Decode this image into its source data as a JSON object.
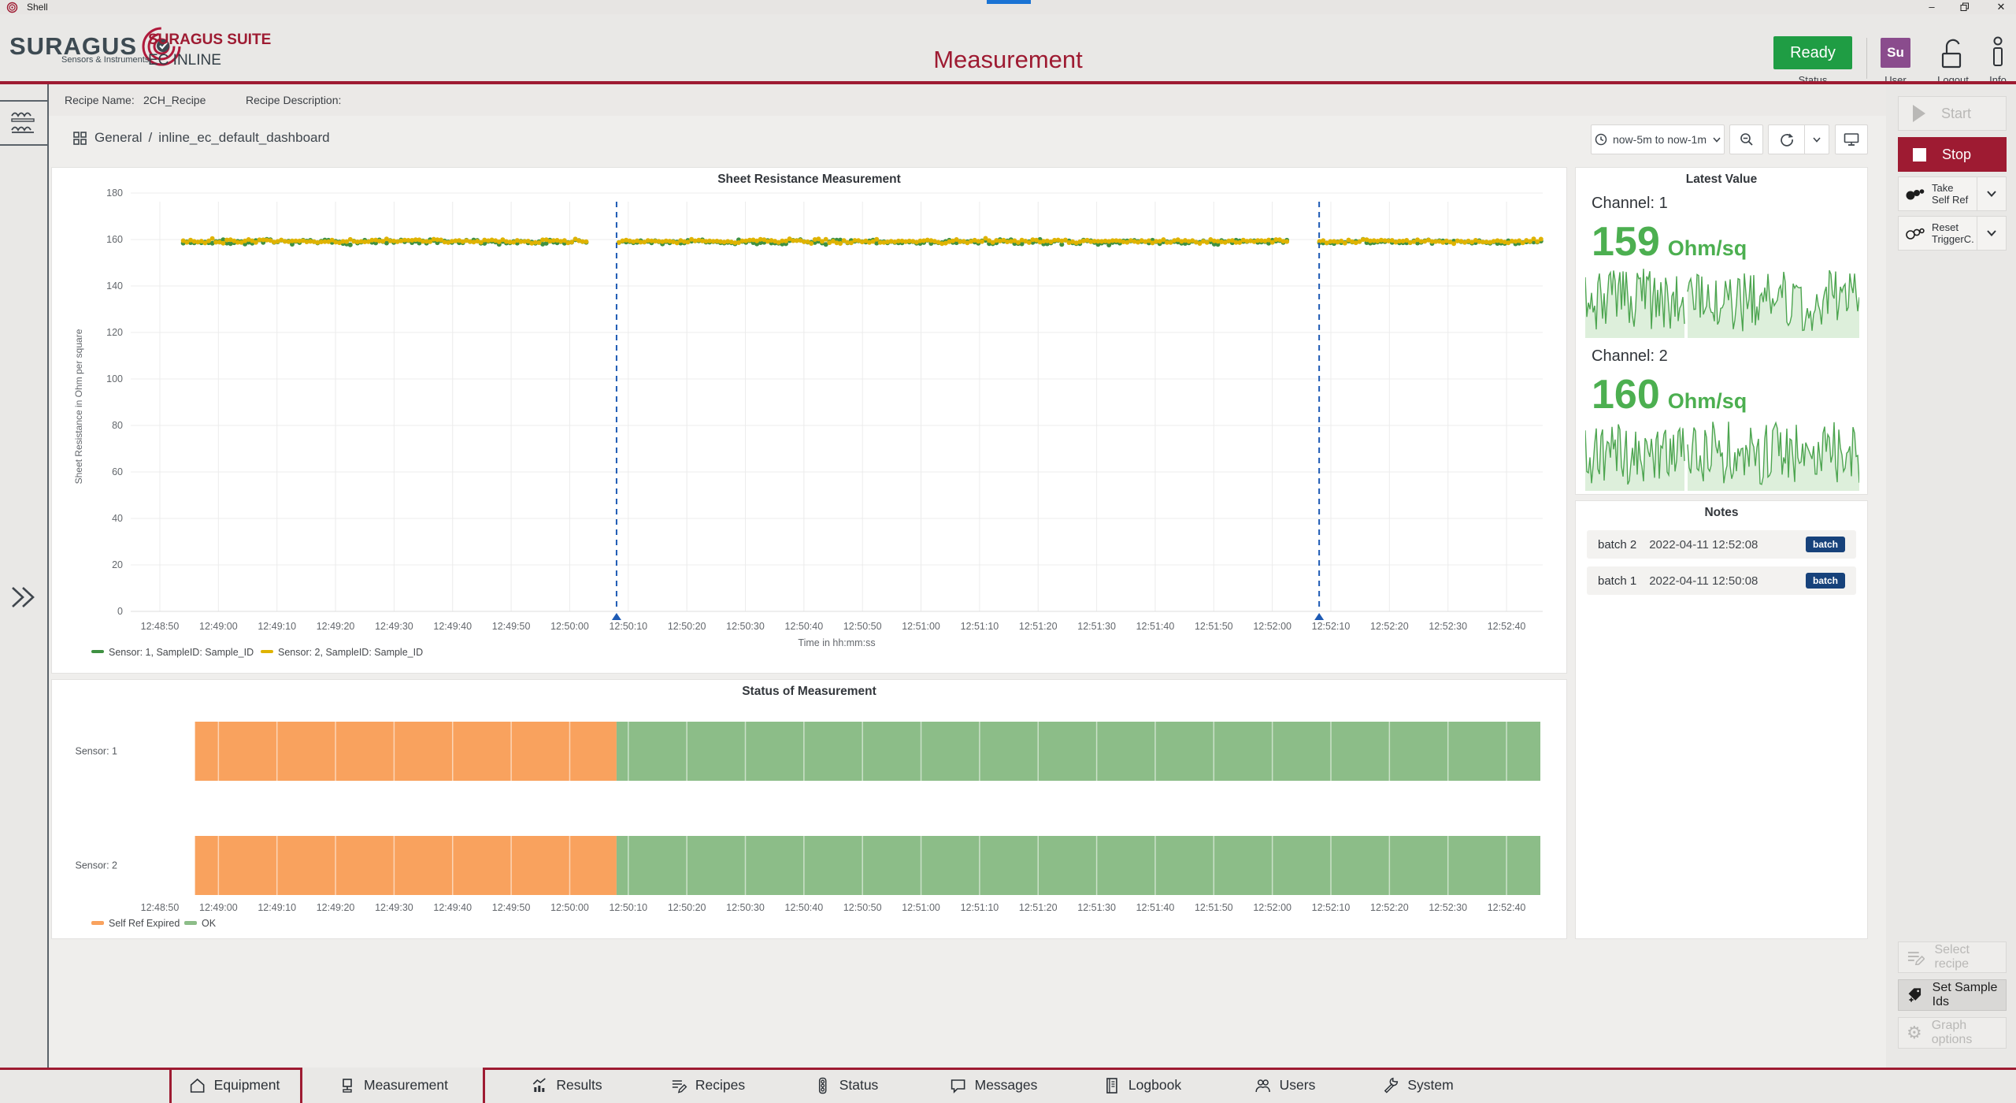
{
  "window": {
    "title": "Shell",
    "controls": {
      "minimize": "minimize",
      "restore": "restore",
      "close": "close"
    }
  },
  "header": {
    "logo_brand": "SURAGUS",
    "logo_tagline": "Sensors & Instruments",
    "suite": "SURAGUS SUITE",
    "product": "EC INLINE",
    "page_title": "Measurement",
    "status_value": "Ready",
    "status_label": "Status",
    "user_initials": "Su",
    "user_label": "User",
    "logout_label": "Logout",
    "info_label": "Info"
  },
  "recipe_bar": {
    "name_label": "Recipe Name:",
    "name_value": "2CH_Recipe",
    "desc_label": "Recipe Description:",
    "desc_value": ""
  },
  "dashboard": {
    "breadcrumb_folder": "General",
    "breadcrumb_separator": "/",
    "breadcrumb_name": "inline_ec_default_dashboard",
    "time_range": "now-5m to now-1m",
    "toolbar_icons": [
      "clock-icon",
      "chevron-down-icon",
      "zoom-out-icon",
      "refresh-icon",
      "chevron-down-icon",
      "tv-mode-icon"
    ]
  },
  "latest_value": {
    "title": "Latest Value",
    "channels": [
      {
        "label": "Channel: 1",
        "value": "159",
        "unit": "Ohm/sq"
      },
      {
        "label": "Channel: 2",
        "value": "160",
        "unit": "Ohm/sq"
      }
    ]
  },
  "notes": {
    "title": "Notes",
    "items": [
      {
        "name": "batch 2",
        "timestamp": "2022-04-11 12:52:08",
        "tag": "batch"
      },
      {
        "name": "batch 1",
        "timestamp": "2022-04-11 12:50:08",
        "tag": "batch"
      }
    ]
  },
  "actions": {
    "start": {
      "label": "Start",
      "enabled": false,
      "icon": "play-icon"
    },
    "stop": {
      "label": "Stop",
      "enabled": true,
      "icon": "stop-icon"
    },
    "take_self_ref": {
      "line1": "Take",
      "line2": "Self Ref",
      "icon": "sensor-icon"
    },
    "reset_trigger": {
      "line1": "Reset",
      "line2": "TriggerC.",
      "icon": "sensor-outline-icon"
    },
    "select_recipe": {
      "label": "Select recipe",
      "enabled": false,
      "icon": "recipe-icon"
    },
    "set_sample_ids": {
      "label": "Set Sample Ids",
      "enabled": true,
      "icon": "tag-plus-icon"
    },
    "graph_options": {
      "label": "Graph options",
      "enabled": false,
      "icon": "gear-icon"
    }
  },
  "tabs": [
    {
      "label": "Equipment",
      "icon": "house",
      "active": false
    },
    {
      "label": "Measurement",
      "icon": "monitor",
      "active": true
    },
    {
      "label": "Results",
      "icon": "results",
      "active": false
    },
    {
      "label": "Recipes",
      "icon": "recipes",
      "active": false
    },
    {
      "label": "Status",
      "icon": "trafficlight",
      "active": false
    },
    {
      "label": "Messages",
      "icon": "bubble",
      "active": false
    },
    {
      "label": "Logbook",
      "icon": "book",
      "active": false
    },
    {
      "label": "Users",
      "icon": "users",
      "active": false
    },
    {
      "label": "System",
      "icon": "wrench",
      "active": false
    }
  ],
  "chart_data": [
    {
      "id": "sheet_resistance",
      "type": "scatter",
      "title": "Sheet Resistance Measurement",
      "xlabel": "Time in hh:mm:ss",
      "ylabel": "Sheet Resistance in Ohm per square",
      "ylim": [
        0,
        180
      ],
      "yticks": [
        0,
        20,
        40,
        60,
        80,
        100,
        120,
        140,
        160,
        180
      ],
      "xticks": [
        "12:48:50",
        "12:49:00",
        "12:49:10",
        "12:49:20",
        "12:49:30",
        "12:49:40",
        "12:49:50",
        "12:50:00",
        "12:50:10",
        "12:50:20",
        "12:50:30",
        "12:50:40",
        "12:50:50",
        "12:51:00",
        "12:51:10",
        "12:51:20",
        "12:51:30",
        "12:51:40",
        "12:51:50",
        "12:52:00",
        "12:52:10",
        "12:52:20",
        "12:52:30",
        "12:52:40"
      ],
      "grid": true,
      "legend_position": "bottom-left",
      "data_start": "12:48:54",
      "data_end": "12:52:46",
      "series": [
        {
          "name": "Sensor: 1, SampleID: Sample_ID",
          "color": "#3f9142",
          "baseline": 158.9,
          "spread": 1.0,
          "description": "constant ~159 Ohm/sq with noise"
        },
        {
          "name": "Sensor: 2, SampleID: Sample_ID",
          "color": "#dfb301",
          "baseline": 159.3,
          "spread": 0.85,
          "description": "constant ~159 Ohm/sq with noise"
        }
      ],
      "annotations": [
        {
          "time": "12:50:08",
          "color": "#1d5ab4",
          "style": "dashed-vertical"
        },
        {
          "time": "12:52:08",
          "color": "#1d5ab4",
          "style": "dashed-vertical"
        }
      ],
      "gaps": [
        {
          "from": "12:50:03",
          "to": "12:50:08"
        },
        {
          "from": "12:52:03",
          "to": "12:52:08"
        }
      ]
    },
    {
      "id": "status_of_measurement",
      "type": "timeline",
      "title": "Status of Measurement",
      "xticks": [
        "12:48:50",
        "12:49:00",
        "12:49:10",
        "12:49:20",
        "12:49:30",
        "12:49:40",
        "12:49:50",
        "12:50:00",
        "12:50:10",
        "12:50:20",
        "12:50:30",
        "12:50:40",
        "12:50:50",
        "12:51:00",
        "12:51:10",
        "12:51:20",
        "12:51:30",
        "12:51:40",
        "12:51:50",
        "12:52:00",
        "12:52:10",
        "12:52:20",
        "12:52:30",
        "12:52:40"
      ],
      "rows": [
        {
          "label": "Sensor: 1",
          "segments": [
            {
              "state": "Self Ref Expired",
              "from": "12:48:56",
              "to": "12:50:08"
            },
            {
              "state": "OK",
              "from": "12:50:08",
              "to": "12:52:46"
            }
          ]
        },
        {
          "label": "Sensor: 2",
          "segments": [
            {
              "state": "Self Ref Expired",
              "from": "12:48:56",
              "to": "12:50:08"
            },
            {
              "state": "OK",
              "from": "12:50:08",
              "to": "12:52:46"
            }
          ]
        }
      ],
      "states": {
        "Self Ref Expired": "#f9a25e",
        "OK": "#8cbd88"
      },
      "legend": [
        {
          "label": "Self Ref Expired",
          "color": "#f9a25e"
        },
        {
          "label": "OK",
          "color": "#8cbd88"
        }
      ]
    },
    {
      "id": "latest_value_sparklines",
      "type": "line",
      "series": [
        {
          "name": "Channel: 1",
          "latest": 159,
          "unit": "Ohm/sq",
          "description": "noisy flat signal ~159"
        },
        {
          "name": "Channel: 2",
          "latest": 160,
          "unit": "Ohm/sq",
          "description": "noisy flat signal ~160"
        }
      ],
      "line_color": "#4da550",
      "fill_color": "#ddefdb"
    }
  ]
}
